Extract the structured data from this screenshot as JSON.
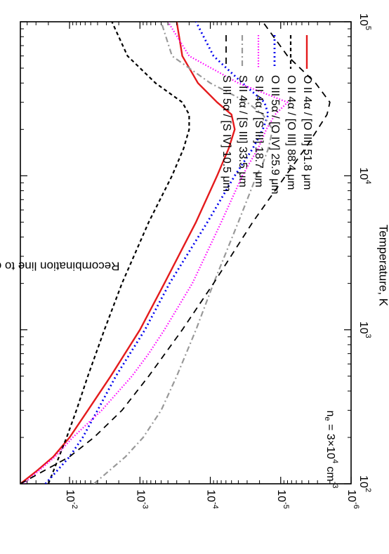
{
  "chart_data": {
    "type": "line",
    "rotation_deg": 90,
    "xlabel": "Temperature, K",
    "ylabel": "Recombination line to collisional line ratio",
    "x_scale": "log",
    "y_scale": "log",
    "xlim": [
      100,
      100000
    ],
    "ylim": [
      1e-06,
      0.05
    ],
    "x_ticks": [
      {
        "value": 100,
        "label_base": "10",
        "label_exp": "2"
      },
      {
        "value": 1000,
        "label_base": "10",
        "label_exp": "3"
      },
      {
        "value": 10000,
        "label_base": "10",
        "label_exp": "4"
      },
      {
        "value": 100000,
        "label_base": "10",
        "label_exp": "5"
      }
    ],
    "y_ticks": [
      {
        "value": 1e-06,
        "label_base": "10",
        "label_exp": "-6"
      },
      {
        "value": 1e-05,
        "label_base": "10",
        "label_exp": "-5"
      },
      {
        "value": 0.0001,
        "label_base": "10",
        "label_exp": "-4"
      },
      {
        "value": 0.001,
        "label_base": "10",
        "label_exp": "-3"
      },
      {
        "value": 0.01,
        "label_base": "10",
        "label_exp": "-2"
      }
    ],
    "annotation": {
      "base": "n",
      "sub": "e",
      "mid": " = 3×10",
      "exp": "4",
      "unit": " cm",
      "unit_exp": "-3"
    },
    "legend_position": "top-right",
    "series": [
      {
        "name": "O II 4α / [O III] 51.8 μm",
        "color": "#e41a1c",
        "dash": "solid",
        "x": [
          100,
          120,
          150,
          200,
          300,
          500,
          1000,
          2000,
          5000,
          10000,
          15000,
          20000,
          25000,
          30000,
          40000,
          60000,
          100000
        ],
        "y": [
          0.05,
          0.03,
          0.017,
          0.01,
          0.0055,
          0.0026,
          0.001,
          0.00045,
          0.00016,
          8e-05,
          5.5e-05,
          4.5e-05,
          5e-05,
          8e-05,
          0.00015,
          0.00025,
          0.0003
        ]
      },
      {
        "name": "O II 4α / [O III] 88.4 μm",
        "color": "#000000",
        "dash": "medium",
        "x": [
          100,
          200,
          300,
          500,
          1000,
          2000,
          5000,
          10000,
          15000,
          20000,
          25000,
          30000,
          40000,
          60000,
          100000
        ],
        "y": [
          0.02,
          0.011,
          0.008,
          0.0055,
          0.0032,
          0.0018,
          0.00075,
          0.00035,
          0.00024,
          0.0002,
          0.0002,
          0.00025,
          0.0006,
          0.0015,
          0.0025
        ]
      },
      {
        "name": "O III 5α / [O IV] 25.9 μm",
        "color": "#0000ee",
        "dash": "dot",
        "x": [
          100,
          150,
          200,
          300,
          500,
          1000,
          2000,
          5000,
          10000,
          15000,
          20000,
          25000,
          30000,
          40000,
          60000,
          100000
        ],
        "y": [
          0.022,
          0.01,
          0.0065,
          0.004,
          0.0022,
          0.00085,
          0.00038,
          0.00011,
          4.5e-05,
          2.5e-05,
          1.8e-05,
          1.5e-05,
          1.7e-05,
          3.5e-05,
          9e-05,
          0.00016
        ]
      },
      {
        "name": "S II 4α / [S III] 18.7 μm",
        "color": "#ff00ff",
        "dash": "fine-dot",
        "x": [
          100,
          150,
          200,
          300,
          500,
          700,
          1000,
          2000,
          5000,
          10000,
          12000,
          15000,
          20000,
          25000,
          30000,
          40000,
          60000,
          100000
        ],
        "y": [
          0.045,
          0.016,
          0.009,
          0.0035,
          0.0013,
          0.00075,
          0.00045,
          0.00018,
          7e-05,
          3.5e-05,
          2.8e-05,
          2.1e-05,
          1.6e-05,
          1.2e-05,
          8e-06,
          4e-05,
          0.0002,
          0.0004
        ]
      },
      {
        "name": "S II 4α / [S III] 33.5 μm",
        "color": "#999999",
        "dash": "dash-dot",
        "x": [
          100,
          150,
          200,
          300,
          500,
          1000,
          2000,
          5000,
          10000,
          12000,
          15000,
          20000,
          25000,
          30000,
          40000,
          60000,
          100000
        ],
        "y": [
          0.0045,
          0.0016,
          0.0009,
          0.0005,
          0.0003,
          0.00016,
          9e-05,
          4e-05,
          2.2e-05,
          1.8e-05,
          1.5e-05,
          1.3e-05,
          1.8e-05,
          3e-05,
          0.0001,
          0.00035,
          0.0005
        ]
      },
      {
        "name": "S III 5α / [S IV] 10.5 μm",
        "color": "#000000",
        "dash": "long",
        "x": [
          100,
          150,
          200,
          300,
          500,
          1000,
          2000,
          5000,
          10000,
          15000,
          20000,
          25000,
          30000,
          40000,
          60000,
          100000
        ],
        "y": [
          0.05,
          0.01,
          0.0045,
          0.0018,
          0.00075,
          0.00025,
          9e-05,
          2.5e-05,
          8.5e-06,
          4.5e-06,
          3e-06,
          2.2e-06,
          2e-06,
          3.2e-06,
          8e-06,
          1.8e-05
        ]
      }
    ]
  }
}
